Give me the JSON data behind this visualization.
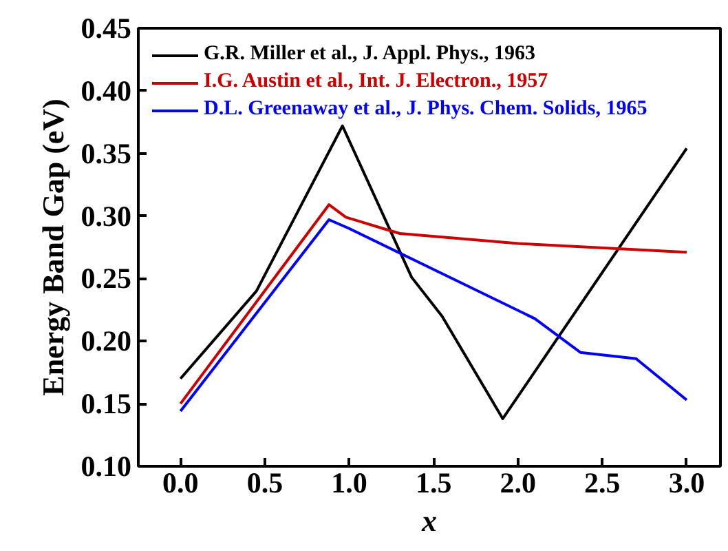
{
  "chart_data": {
    "type": "line",
    "xlabel": "x",
    "ylabel": "Energy Band Gap (eV)",
    "xlim": [
      -0.25,
      3.2
    ],
    "ylim": [
      0.1,
      0.45
    ],
    "xticks": [
      {
        "value": 0,
        "label": "0.0"
      },
      0.5,
      {
        "value": 1,
        "label": "1.0"
      },
      1.5,
      {
        "value": 2,
        "label": "2.0"
      },
      2.5,
      {
        "value": 3,
        "label": "3.0"
      }
    ],
    "yticks": [
      {
        "value": 0.1,
        "label": "0.10"
      },
      0.15,
      {
        "value": 0.2,
        "label": "0.20"
      },
      0.25,
      {
        "value": 0.3,
        "label": "0.30"
      },
      0.35,
      {
        "value": 0.4,
        "label": "0.40"
      },
      0.45
    ],
    "legend": "top left",
    "grid": false,
    "line_style": "solid",
    "series": [
      {
        "name": "G.R. Miller et al., J. Appl. Phys., 1963",
        "color": "#000000",
        "x": [
          0.0,
          0.45,
          0.96,
          1.37,
          1.55,
          1.91,
          3.0
        ],
        "values": [
          0.17,
          0.24,
          0.372,
          0.251,
          0.22,
          0.138,
          0.354
        ]
      },
      {
        "name": "I.G. Austin et al., Int. J. Electron., 1957",
        "color": "#cc0000",
        "x": [
          0.0,
          0.88,
          0.98,
          1.2,
          1.3,
          2.0,
          3.0
        ],
        "values": [
          0.15,
          0.309,
          0.299,
          0.29,
          0.286,
          0.278,
          0.271
        ]
      },
      {
        "name": "D.L. Greenaway et al., J. Phys. Chem. Solids, 1965",
        "color": "#0000ff",
        "x": [
          0.0,
          0.88,
          1.0,
          2.1,
          2.37,
          2.7,
          3.0
        ],
        "values": [
          0.144,
          0.297,
          0.29,
          0.218,
          0.191,
          0.186,
          0.153
        ]
      }
    ]
  }
}
